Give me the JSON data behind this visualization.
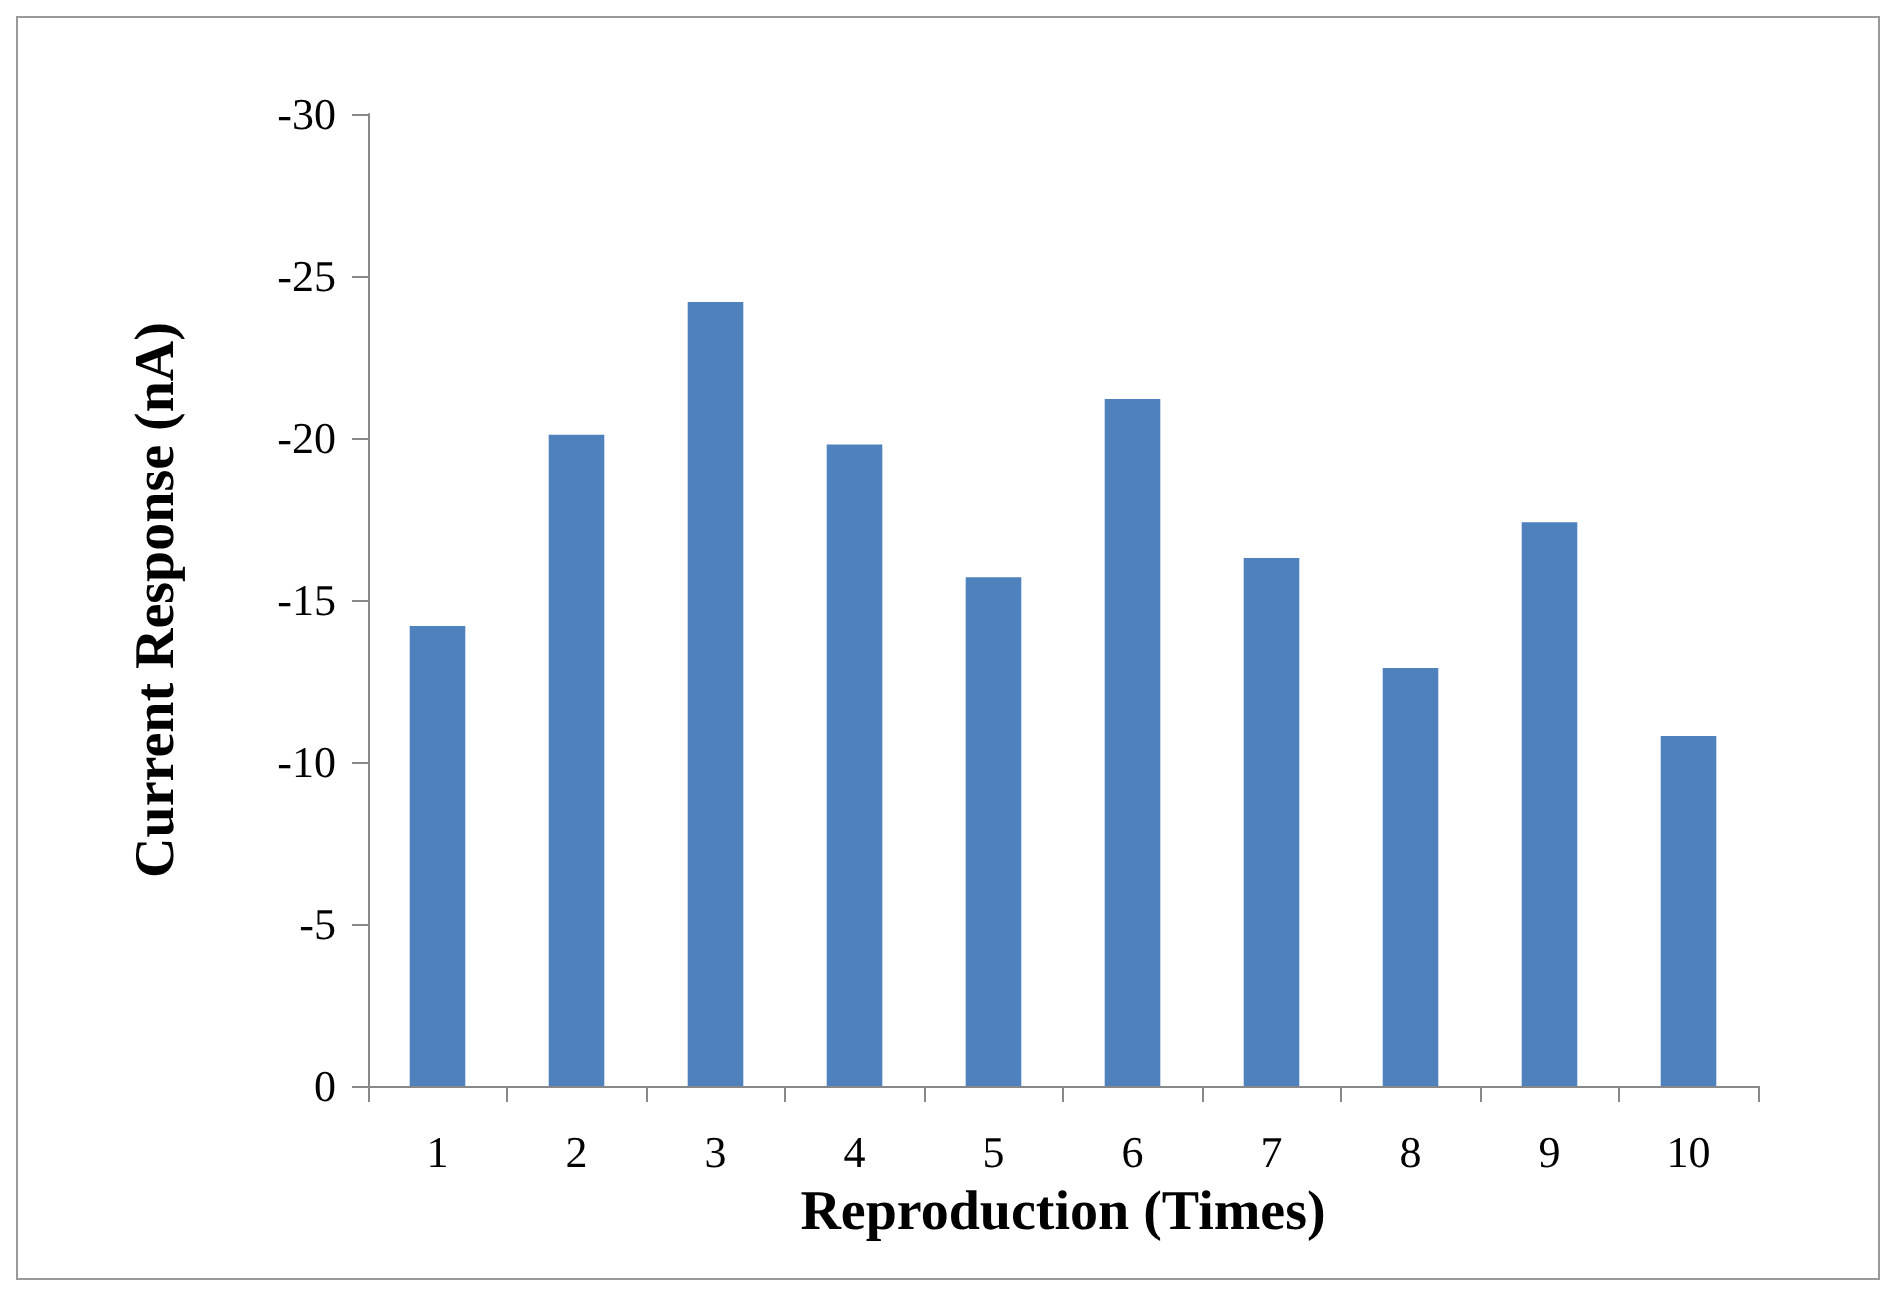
{
  "chart_data": {
    "type": "bar",
    "xlabel": "Reproduction (Times)",
    "ylabel": "Current Response (nA)",
    "categories": [
      "1",
      "2",
      "3",
      "4",
      "5",
      "6",
      "7",
      "8",
      "9",
      "10"
    ],
    "values": [
      -14.2,
      -20.1,
      -24.2,
      -19.8,
      -15.7,
      -21.2,
      -16.3,
      -12.9,
      -17.4,
      -10.8
    ],
    "color": "#4f81bd",
    "ylim": [
      0,
      -30
    ],
    "yticks": [
      0,
      -5,
      -10,
      -15,
      -20,
      -25,
      -30
    ],
    "grid": false
  }
}
